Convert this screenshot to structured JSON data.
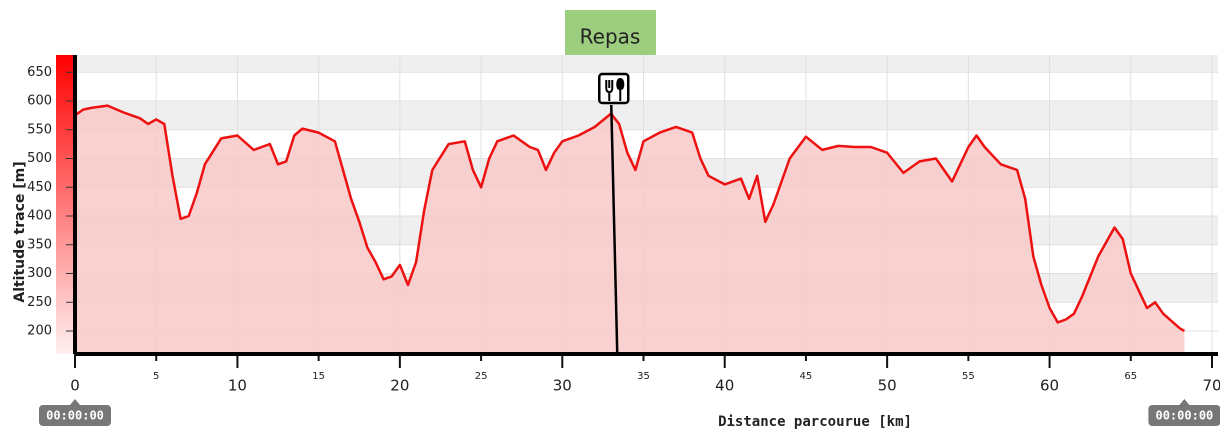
{
  "chart_data": {
    "type": "area",
    "x_label": "Distance parcourue [km]",
    "y_label": "Altitude trace [m]",
    "annotation": {
      "text": "Repas",
      "x": 33.2
    },
    "start_time": "00:00:00",
    "end_time": "00:00:00",
    "color": "#ee1111",
    "fill": "#f9c9c9",
    "grid": true,
    "x": [
      0,
      0.5,
      1,
      2,
      3,
      4,
      4.5,
      5,
      5.5,
      6,
      6.5,
      7,
      7.5,
      8,
      9,
      10,
      11,
      11.5,
      12,
      12.5,
      13,
      13.5,
      14,
      15,
      16,
      16.5,
      17,
      17.5,
      18,
      18.5,
      19,
      19.5,
      20,
      20.5,
      21,
      21.5,
      22,
      23,
      24,
      24.5,
      25,
      25.5,
      26,
      27,
      28,
      28.5,
      29,
      29.5,
      30,
      31,
      32,
      33,
      33.5,
      34,
      34.5,
      35,
      36,
      37,
      38,
      38.5,
      39,
      40,
      41,
      41.5,
      42,
      42.5,
      43,
      44,
      45,
      46,
      47,
      48,
      49,
      50,
      51,
      52,
      53,
      54,
      55,
      55.5,
      56,
      57,
      58,
      58.5,
      59,
      59.5,
      60,
      60.5,
      61,
      61.5,
      62,
      63,
      64,
      64.5,
      65,
      65.5,
      66,
      66.5,
      67,
      68,
      68.3
    ],
    "values": [
      575,
      585,
      588,
      592,
      580,
      570,
      560,
      568,
      560,
      470,
      395,
      400,
      440,
      490,
      535,
      540,
      515,
      520,
      525,
      490,
      495,
      540,
      552,
      545,
      530,
      480,
      430,
      390,
      345,
      320,
      290,
      295,
      315,
      280,
      320,
      410,
      480,
      525,
      530,
      480,
      450,
      500,
      530,
      540,
      520,
      515,
      480,
      510,
      530,
      540,
      555,
      578,
      560,
      510,
      480,
      530,
      545,
      555,
      545,
      500,
      470,
      455,
      465,
      430,
      470,
      390,
      420,
      500,
      538,
      515,
      522,
      520,
      520,
      510,
      475,
      495,
      500,
      460,
      520,
      540,
      520,
      490,
      480,
      430,
      330,
      280,
      240,
      215,
      220,
      230,
      260,
      330,
      380,
      360,
      300,
      270,
      240,
      250,
      230,
      205,
      200
    ],
    "xlim": [
      0,
      70
    ],
    "xticks": [
      0,
      5,
      10,
      15,
      20,
      25,
      30,
      35,
      40,
      45,
      50,
      55,
      60,
      65,
      70
    ],
    "ylim": [
      160,
      680
    ],
    "yticks": [
      200,
      250,
      300,
      350,
      400,
      450,
      500,
      550,
      600,
      650
    ]
  }
}
